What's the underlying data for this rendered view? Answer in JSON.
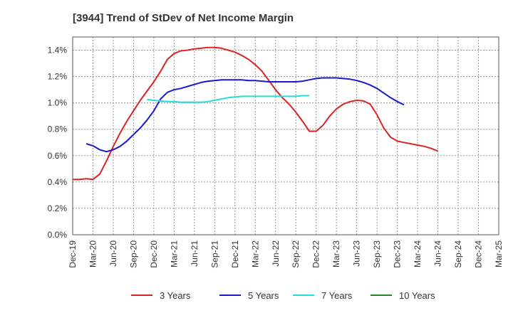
{
  "chart_data": {
    "type": "line",
    "title": "[3944]  Trend of StDev of Net Income Margin",
    "xlabel": "",
    "ylabel": "",
    "x_ticks": [
      "Dec-19",
      "Mar-20",
      "Jun-20",
      "Sep-20",
      "Dec-20",
      "Mar-21",
      "Jun-21",
      "Sep-21",
      "Dec-21",
      "Mar-22",
      "Jun-22",
      "Sep-22",
      "Dec-22",
      "Mar-23",
      "Jun-23",
      "Sep-23",
      "Dec-23",
      "Mar-24",
      "Jun-24",
      "Sep-24",
      "Dec-24",
      "Mar-25"
    ],
    "y_ticks": [
      "0.0%",
      "0.2%",
      "0.4%",
      "0.6%",
      "0.8%",
      "1.0%",
      "1.2%",
      "1.4%"
    ],
    "ylim": [
      0,
      1.5
    ],
    "grid": true,
    "legend_position": "bottom",
    "series": [
      {
        "name": "3 Years",
        "color": "#dd2222",
        "values": [
          [
            0,
            0.42
          ],
          [
            1,
            0.42
          ],
          [
            2,
            0.425
          ],
          [
            3,
            0.42
          ],
          [
            4,
            0.46
          ],
          [
            5,
            0.56
          ],
          [
            6,
            0.67
          ],
          [
            7,
            0.77
          ],
          [
            8,
            0.86
          ],
          [
            9,
            0.94
          ],
          [
            10,
            1.02
          ],
          [
            11,
            1.09
          ],
          [
            12,
            1.16
          ],
          [
            13,
            1.24
          ],
          [
            14,
            1.33
          ],
          [
            15,
            1.375
          ],
          [
            16,
            1.395
          ],
          [
            17,
            1.4
          ],
          [
            18,
            1.41
          ],
          [
            19,
            1.415
          ],
          [
            20,
            1.42
          ],
          [
            21,
            1.42
          ],
          [
            22,
            1.415
          ],
          [
            23,
            1.4
          ],
          [
            24,
            1.385
          ],
          [
            25,
            1.36
          ],
          [
            26,
            1.33
          ],
          [
            27,
            1.29
          ],
          [
            28,
            1.24
          ],
          [
            29,
            1.17
          ],
          [
            30,
            1.1
          ],
          [
            31,
            1.04
          ],
          [
            32,
            0.99
          ],
          [
            33,
            0.93
          ],
          [
            34,
            0.86
          ],
          [
            35,
            0.785
          ],
          [
            36,
            0.785
          ],
          [
            37,
            0.83
          ],
          [
            38,
            0.9
          ],
          [
            39,
            0.955
          ],
          [
            40,
            0.99
          ],
          [
            41,
            1.01
          ],
          [
            42,
            1.02
          ],
          [
            43,
            1.015
          ],
          [
            44,
            0.99
          ],
          [
            45,
            0.91
          ],
          [
            46,
            0.81
          ],
          [
            47,
            0.74
          ],
          [
            48,
            0.71
          ],
          [
            49,
            0.7
          ],
          [
            50,
            0.69
          ],
          [
            51,
            0.68
          ],
          [
            52,
            0.67
          ],
          [
            53,
            0.655
          ],
          [
            54,
            0.635
          ]
        ]
      },
      {
        "name": "5 Years",
        "color": "#1a1acc",
        "values": [
          [
            2,
            0.69
          ],
          [
            3,
            0.675
          ],
          [
            4,
            0.645
          ],
          [
            5,
            0.63
          ],
          [
            6,
            0.645
          ],
          [
            7,
            0.67
          ],
          [
            8,
            0.71
          ],
          [
            9,
            0.76
          ],
          [
            10,
            0.81
          ],
          [
            11,
            0.87
          ],
          [
            12,
            0.94
          ],
          [
            13,
            1.03
          ],
          [
            14,
            1.08
          ],
          [
            15,
            1.1
          ],
          [
            16,
            1.11
          ],
          [
            17,
            1.125
          ],
          [
            18,
            1.14
          ],
          [
            19,
            1.155
          ],
          [
            20,
            1.165
          ],
          [
            21,
            1.17
          ],
          [
            22,
            1.175
          ],
          [
            23,
            1.175
          ],
          [
            24,
            1.175
          ],
          [
            25,
            1.175
          ],
          [
            26,
            1.17
          ],
          [
            27,
            1.17
          ],
          [
            28,
            1.165
          ],
          [
            29,
            1.16
          ],
          [
            30,
            1.16
          ],
          [
            31,
            1.16
          ],
          [
            32,
            1.16
          ],
          [
            33,
            1.16
          ],
          [
            34,
            1.165
          ],
          [
            35,
            1.175
          ],
          [
            36,
            1.185
          ],
          [
            37,
            1.19
          ],
          [
            38,
            1.19
          ],
          [
            39,
            1.19
          ],
          [
            40,
            1.185
          ],
          [
            41,
            1.18
          ],
          [
            42,
            1.17
          ],
          [
            43,
            1.155
          ],
          [
            44,
            1.135
          ],
          [
            45,
            1.11
          ],
          [
            46,
            1.075
          ],
          [
            47,
            1.04
          ],
          [
            48,
            1.01
          ],
          [
            49,
            0.985
          ]
        ]
      },
      {
        "name": "7 Years",
        "color": "#22dddd",
        "values": [
          [
            11,
            1.025
          ],
          [
            12,
            1.02
          ],
          [
            13,
            1.015
          ],
          [
            14,
            1.01
          ],
          [
            15,
            1.01
          ],
          [
            16,
            1.005
          ],
          [
            17,
            1.005
          ],
          [
            18,
            1.005
          ],
          [
            19,
            1.005
          ],
          [
            20,
            1.01
          ],
          [
            21,
            1.02
          ],
          [
            22,
            1.03
          ],
          [
            23,
            1.04
          ],
          [
            24,
            1.045
          ],
          [
            25,
            1.05
          ],
          [
            26,
            1.05
          ],
          [
            27,
            1.05
          ],
          [
            28,
            1.05
          ],
          [
            29,
            1.05
          ],
          [
            30,
            1.05
          ],
          [
            31,
            1.05
          ],
          [
            32,
            1.05
          ],
          [
            33,
            1.05
          ],
          [
            34,
            1.055
          ],
          [
            35,
            1.055
          ]
        ]
      },
      {
        "name": "10 Years",
        "color": "#228822",
        "values": []
      }
    ]
  }
}
